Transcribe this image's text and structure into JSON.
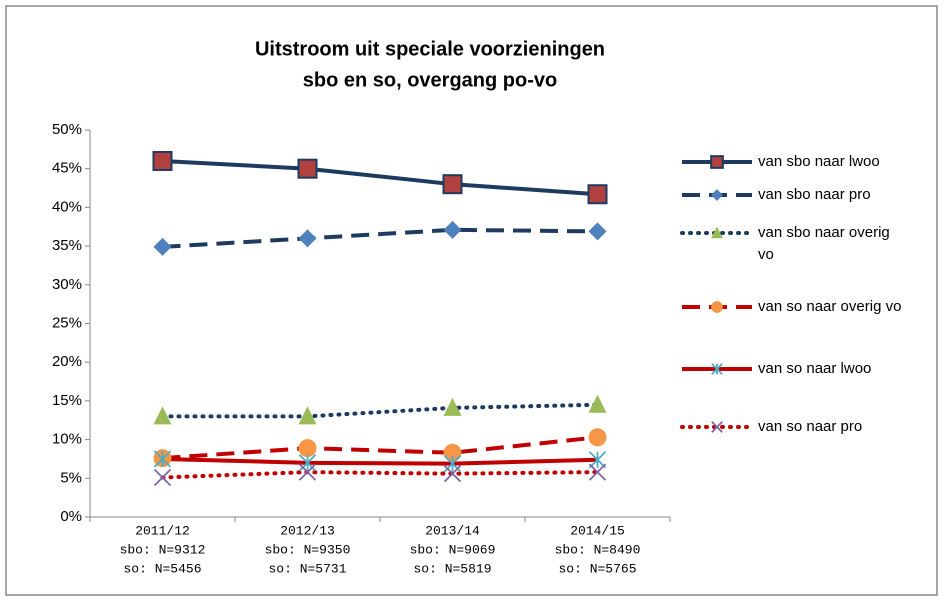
{
  "chart_data": {
    "type": "line",
    "title": [
      "Uitstroom uit speciale voorzieningen",
      "sbo en so, overgang po-vo"
    ],
    "categories": [
      [
        "2011/12",
        "sbo: N=9312",
        "so: N=5456"
      ],
      [
        "2012/13",
        "sbo: N=9350",
        "so: N=5731"
      ],
      [
        "2013/14",
        "sbo: N=9069",
        "so: N=5819"
      ],
      [
        "2014/15",
        "sbo: N=8490",
        "so: N=5765"
      ]
    ],
    "ylim": [
      0,
      50
    ],
    "yticks": [
      {
        "value": 0,
        "label": "0%"
      },
      {
        "value": 5,
        "label": "5%"
      },
      {
        "value": 10,
        "label": "10%"
      },
      {
        "value": 15,
        "label": "15%"
      },
      {
        "value": 20,
        "label": "20%"
      },
      {
        "value": 25,
        "label": "25%"
      },
      {
        "value": 30,
        "label": "30%"
      },
      {
        "value": 35,
        "label": "35%"
      },
      {
        "value": 40,
        "label": "40%"
      },
      {
        "value": 45,
        "label": "45%"
      },
      {
        "value": 50,
        "label": "50%"
      }
    ],
    "grid": false,
    "legend": "right",
    "series": [
      {
        "name": "van sbo naar lwoo",
        "color": "#1f3a60",
        "marker_color": "#b0413e",
        "line": "solid",
        "marker": "square",
        "values": [
          46,
          45,
          43,
          41.7
        ]
      },
      {
        "name": "van sbo naar pro",
        "color": "#1f3a60",
        "marker_color": "#4f81bd",
        "line": "dashed",
        "marker": "diamond",
        "values": [
          34.9,
          36,
          37.1,
          36.9
        ]
      },
      {
        "name": "van sbo naar overig vo",
        "color": "#1f3a60",
        "marker_color": "#9bbb59",
        "line": "dotted",
        "marker": "triangle",
        "values": [
          13,
          13,
          14.1,
          14.5
        ]
      },
      {
        "name": "van so naar overig vo",
        "color": "#c00000",
        "marker_color": "#f79646",
        "line": "dashed",
        "marker": "circle",
        "values": [
          7.6,
          8.9,
          8.3,
          10.3
        ]
      },
      {
        "name": "van so naar lwoo",
        "color": "#c00000",
        "marker_color": "#4bacc6",
        "line": "solid",
        "marker": "star",
        "values": [
          7.5,
          7,
          6.9,
          7.4
        ]
      },
      {
        "name": "van so naar pro",
        "color": "#c00000",
        "marker_color": "#8064a2",
        "line": "dotted",
        "marker": "x",
        "values": [
          5.1,
          5.8,
          5.6,
          5.8
        ]
      }
    ]
  }
}
